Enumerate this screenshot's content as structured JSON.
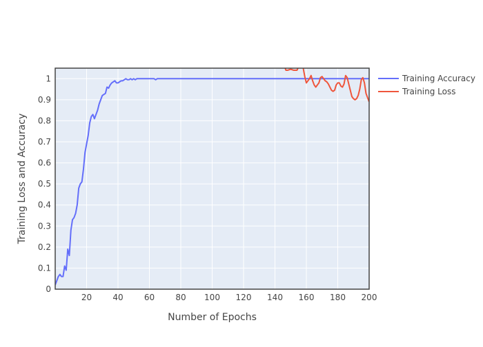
{
  "chart_data": {
    "type": "line",
    "xlabel": "Number of Epochs",
    "ylabel": "Training Loss and Accuracy",
    "xlim": [
      0,
      200
    ],
    "ylim": [
      0,
      1.05
    ],
    "x_ticks": [
      20,
      40,
      60,
      80,
      100,
      120,
      140,
      160,
      180,
      200
    ],
    "x_tick_labels": [
      "20",
      "40",
      "60",
      "80",
      "100",
      "120",
      "140",
      "160",
      "180",
      "200"
    ],
    "y_ticks": [
      0,
      0.1,
      0.2,
      0.3,
      0.4,
      0.5,
      0.6,
      0.7,
      0.8,
      0.9,
      1
    ],
    "y_tick_labels": [
      "0",
      "0.1",
      "0.2",
      "0.3",
      "0.4",
      "0.5",
      "0.6",
      "0.7",
      "0.8",
      "0.9",
      "1"
    ],
    "grid": true,
    "legend_position": "right",
    "plot_background": "#e5ecf6",
    "series": [
      {
        "name": "Training Accuracy",
        "color": "#636efa",
        "x": [
          0,
          1,
          2,
          3,
          4,
          5,
          6,
          7,
          8,
          9,
          10,
          11,
          12,
          13,
          14,
          15,
          16,
          17,
          18,
          19,
          20,
          21,
          22,
          23,
          24,
          25,
          26,
          27,
          28,
          29,
          30,
          31,
          32,
          33,
          34,
          35,
          36,
          37,
          38,
          39,
          40,
          41,
          42,
          43,
          44,
          45,
          46,
          47,
          48,
          49,
          50,
          51,
          52,
          53,
          54,
          55,
          56,
          57,
          58,
          59,
          60,
          61,
          62,
          63,
          64,
          65,
          66,
          67,
          68,
          70,
          80,
          100,
          120,
          140,
          160,
          180,
          200
        ],
        "y": [
          0.02,
          0.04,
          0.06,
          0.07,
          0.06,
          0.06,
          0.11,
          0.09,
          0.19,
          0.16,
          0.28,
          0.33,
          0.34,
          0.36,
          0.4,
          0.48,
          0.5,
          0.51,
          0.57,
          0.65,
          0.69,
          0.73,
          0.79,
          0.82,
          0.83,
          0.81,
          0.83,
          0.85,
          0.88,
          0.9,
          0.92,
          0.925,
          0.93,
          0.96,
          0.955,
          0.97,
          0.98,
          0.985,
          0.99,
          0.98,
          0.98,
          0.985,
          0.99,
          0.99,
          0.995,
          1.0,
          0.995,
          0.995,
          1.0,
          0.995,
          1.0,
          0.995,
          1.0,
          1.0,
          1.0,
          1.0,
          1.0,
          1.0,
          1.0,
          1.0,
          1.0,
          1.0,
          1.0,
          1.0,
          0.995,
          1.0,
          1.0,
          1.0,
          1.0,
          1.0,
          1.0,
          1.0,
          1.0,
          1.0,
          1.0,
          1.0,
          1.0
        ]
      },
      {
        "name": "Training Loss",
        "color": "#ef553b",
        "x": [
          140,
          146,
          147,
          148,
          150,
          152,
          154,
          156,
          157,
          158,
          159,
          160,
          161,
          162,
          163,
          164,
          165,
          166,
          167,
          168,
          169,
          170,
          171,
          172,
          173,
          174,
          175,
          176,
          177,
          178,
          179,
          180,
          181,
          182,
          183,
          184,
          185,
          186,
          187,
          188,
          189,
          190,
          191,
          192,
          193,
          194,
          195,
          196,
          197,
          198,
          199,
          200
        ],
        "y": [
          1.06,
          1.06,
          1.04,
          1.04,
          1.045,
          1.04,
          1.04,
          1.07,
          1.055,
          1.05,
          1.01,
          0.98,
          0.99,
          1.0,
          1.015,
          0.99,
          0.97,
          0.96,
          0.97,
          0.98,
          1.005,
          1.01,
          1.0,
          0.99,
          0.985,
          0.975,
          0.96,
          0.945,
          0.94,
          0.945,
          0.97,
          0.98,
          0.98,
          0.965,
          0.96,
          0.975,
          1.015,
          1.005,
          0.975,
          0.945,
          0.915,
          0.905,
          0.9,
          0.905,
          0.92,
          0.95,
          0.995,
          1.005,
          0.98,
          0.93,
          0.91,
          0.89
        ]
      }
    ]
  }
}
